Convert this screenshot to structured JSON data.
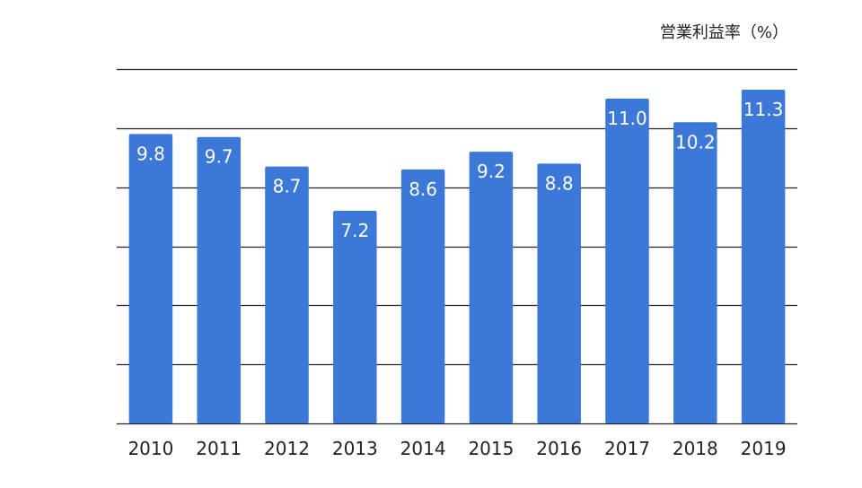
{
  "chart_data": {
    "type": "bar",
    "unit_label": "営業利益率（%）",
    "categories": [
      "2010",
      "2011",
      "2012",
      "2013",
      "2014",
      "2015",
      "2016",
      "2017",
      "2018",
      "2019"
    ],
    "series": [
      {
        "values": [
          9.8,
          9.7,
          8.7,
          7.2,
          8.6,
          9.2,
          8.8,
          11.0,
          10.2,
          11.3
        ],
        "labels": [
          "9.8",
          "9.7",
          "8.7",
          "7.2",
          "8.6",
          "9.2",
          "8.8",
          "11.0",
          "10.2",
          "11.3"
        ]
      }
    ],
    "ylim": [
      0,
      12
    ],
    "gridline_step": 2,
    "grid": true,
    "y_tick_labels_shown": false,
    "data_labels": true,
    "bar_color": "#3c78d8",
    "label_color": "#ffffff",
    "gridline_color": "#222222"
  }
}
